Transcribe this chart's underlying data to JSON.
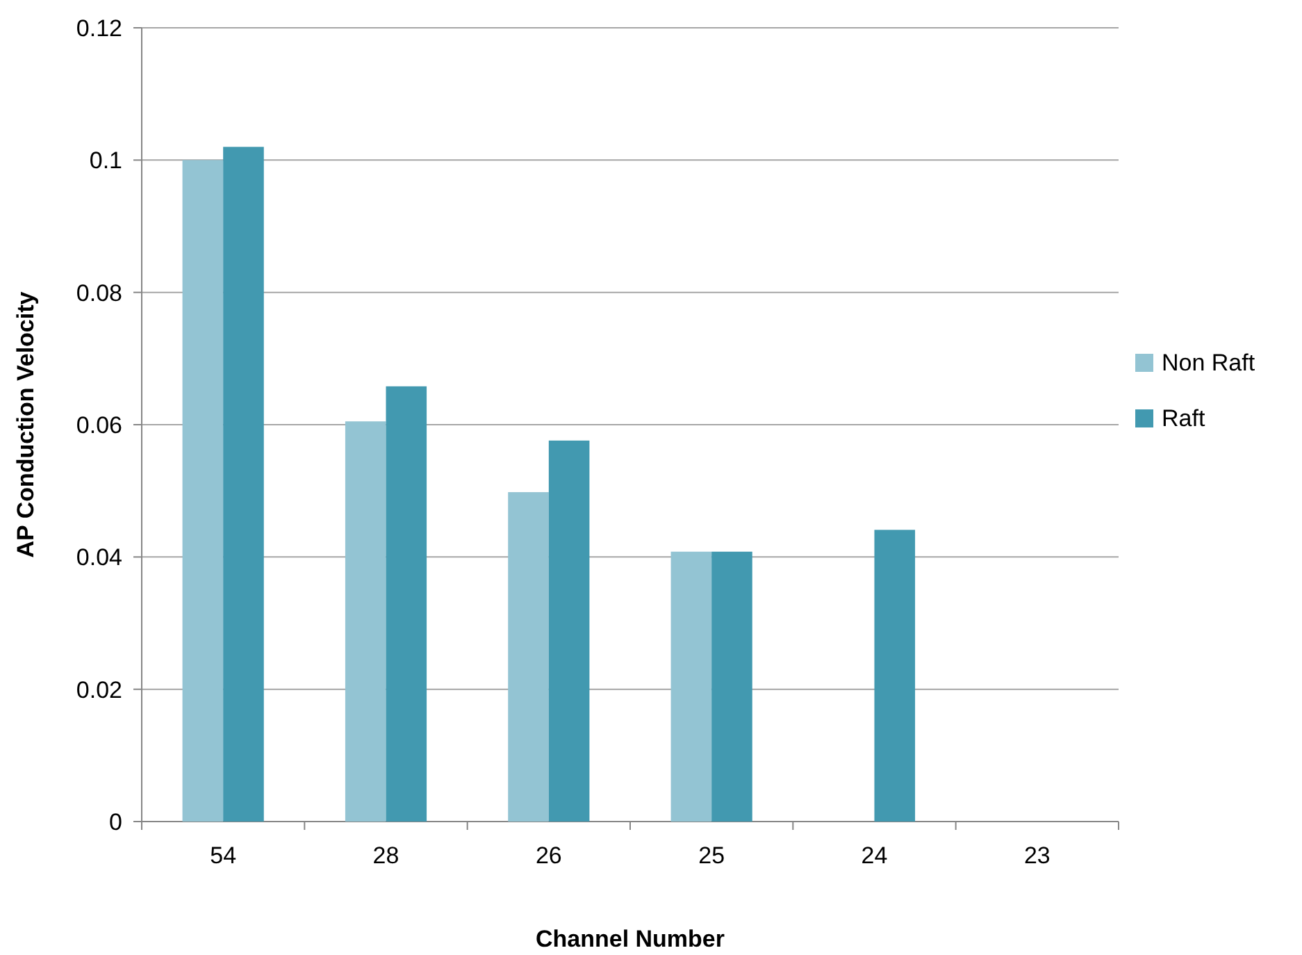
{
  "chart_data": {
    "type": "bar",
    "xlabel": "Channel Number",
    "ylabel": "AP Conduction Velocity",
    "categories": [
      "54",
      "28",
      "26",
      "25",
      "24",
      "23"
    ],
    "series": [
      {
        "name": "Non Raft",
        "color": "#93c4d3",
        "values": [
          0.1,
          0.0605,
          0.0498,
          0.0408,
          null,
          null
        ]
      },
      {
        "name": "Raft",
        "color": "#4299b0",
        "values": [
          0.102,
          0.0658,
          0.0576,
          0.0408,
          0.0441,
          null
        ]
      }
    ],
    "ylim": [
      0,
      0.12
    ],
    "yticks": [
      0,
      0.02,
      0.04,
      0.06,
      0.08,
      0.1,
      0.12
    ],
    "grid": "y",
    "legend": "right"
  }
}
